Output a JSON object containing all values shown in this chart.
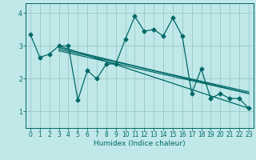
{
  "title": "",
  "xlabel": "Humidex (Indice chaleur)",
  "ylabel": "",
  "bg_color": "#c0e8e8",
  "grid_color": "#a0cccc",
  "line_color": "#006868",
  "xlim": [
    -0.5,
    23.5
  ],
  "ylim": [
    0.5,
    4.3
  ],
  "yticks": [
    1,
    2,
    3,
    4
  ],
  "xticks": [
    0,
    1,
    2,
    3,
    4,
    5,
    6,
    7,
    8,
    9,
    10,
    11,
    12,
    13,
    14,
    15,
    16,
    17,
    18,
    19,
    20,
    21,
    22,
    23
  ],
  "curve1_x": [
    0,
    1,
    2,
    3,
    4,
    5,
    6,
    7,
    8,
    9,
    10,
    11,
    12,
    13,
    14,
    15,
    16,
    17,
    18,
    19,
    20,
    21,
    22,
    23
  ],
  "curve1_y": [
    3.35,
    2.65,
    2.75,
    3.0,
    3.0,
    1.35,
    2.25,
    2.0,
    2.45,
    2.45,
    3.2,
    3.9,
    3.45,
    3.5,
    3.3,
    3.85,
    3.3,
    1.55,
    2.3,
    1.4,
    1.55,
    1.4,
    1.4,
    1.1
  ],
  "line1_x": [
    3,
    23
  ],
  "line1_y": [
    3.0,
    1.1
  ],
  "line2_x": [
    3,
    23
  ],
  "line2_y": [
    2.95,
    1.55
  ],
  "line3_x": [
    3,
    23
  ],
  "line3_y": [
    2.9,
    1.6
  ],
  "line4_x": [
    3,
    23
  ],
  "line4_y": [
    2.85,
    1.55
  ],
  "marker_style": "D",
  "marker_size": 2.5,
  "line_width": 0.9,
  "tick_fontsize": 5.5,
  "xlabel_fontsize": 6.5
}
